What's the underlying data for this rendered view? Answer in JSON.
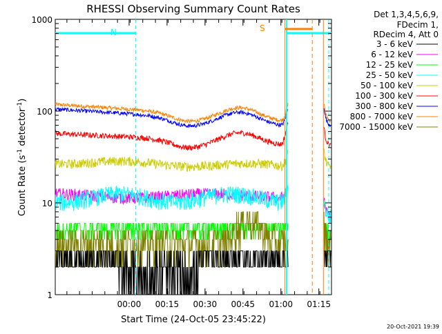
{
  "chart_data": {
    "type": "line",
    "title": "RHESSI Observing Summary Count Rates",
    "xlabel": "Start Time (24-Oct-05 23:45:22)",
    "ylabel_main": "Count Rate (s",
    "ylabel_sup1": "-1",
    "ylabel_mid": " detector",
    "ylabel_sup2": "-1",
    "ylabel_end": ")",
    "yscale": "log",
    "ylim": [
      1,
      1000
    ],
    "xlim_minutes": [
      -14.6,
      94.6
    ],
    "x_ticks": [
      {
        "label": "00:00",
        "minutes": 14.6
      },
      {
        "label": "00:15",
        "minutes": 29.6
      },
      {
        "label": "00:30",
        "minutes": 44.6
      },
      {
        "label": "00:45",
        "minutes": 59.6
      },
      {
        "label": "01:00",
        "minutes": 74.6
      },
      {
        "label": "01:15",
        "minutes": 89.6
      }
    ],
    "y_ticks": [
      {
        "label": "1",
        "value": 1
      },
      {
        "label": "10",
        "value": 10
      },
      {
        "label": "100",
        "value": 100
      },
      {
        "label": "1000",
        "value": 1000
      }
    ],
    "legend_header": [
      "Det 1,3,4,5,6,9,",
      "FDecim 1,",
      "RDecim 4, Att 0"
    ],
    "series": [
      {
        "name": "3 - 6 keV",
        "color": "#000000"
      },
      {
        "name": "6 - 12 keV",
        "color": "#ff00ff"
      },
      {
        "name": "12 - 25 keV",
        "color": "#00ff00"
      },
      {
        "name": "25 - 50 keV",
        "color": "#00ffff"
      },
      {
        "name": "50 - 100 keV",
        "color": "#cccc00"
      },
      {
        "name": "100 - 300 keV",
        "color": "#ff0000"
      },
      {
        "name": "300 - 800 keV",
        "color": "#0000ff"
      },
      {
        "name": "800 - 7000 keV",
        "color": "#ff8000"
      },
      {
        "name": "7000 - 15000 keV",
        "color": "#808000"
      }
    ],
    "annotations": {
      "night_label": "N",
      "saa_label": "S",
      "night_color": "#00ffff",
      "saa_color": "#ff8000"
    },
    "footer_date": "20-Oct-2021 19:39"
  }
}
